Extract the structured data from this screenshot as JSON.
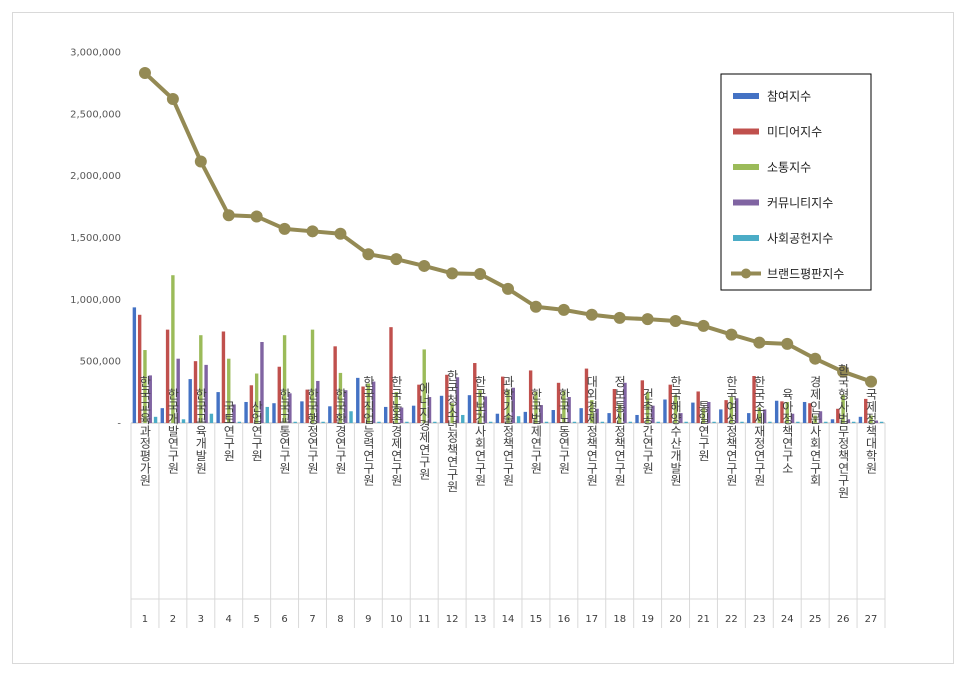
{
  "chart_data": {
    "type": "bar",
    "title": "",
    "xlabel": "",
    "ylabel": "",
    "ylim": [
      0,
      3000000
    ],
    "yticks": [
      0,
      500000,
      1000000,
      1500000,
      2000000,
      2500000,
      3000000
    ],
    "ytick_labels": [
      "-",
      "500,000",
      "1,000,000",
      "1,500,000",
      "2,000,000",
      "2,500,000",
      "3,000,000"
    ],
    "legend_position": "top-right",
    "ranks": [
      "1",
      "2",
      "3",
      "4",
      "5",
      "6",
      "7",
      "8",
      "9",
      "10",
      "11",
      "12",
      "13",
      "14",
      "15",
      "16",
      "17",
      "18",
      "19",
      "20",
      "21",
      "22",
      "23",
      "24",
      "25",
      "26",
      "27"
    ],
    "categories": [
      "한국교육과정평가원",
      "한국개발연구원",
      "한국교육개발원",
      "국토연구원",
      "산업연구원",
      "한국교통연구원",
      "한국행정연구원",
      "한국환경연구원",
      "한국직업능력연구원",
      "한국농촌경제연구원",
      "에너지경제연구원",
      "한국청소년정책연구원",
      "한국보건사회연구원",
      "과학기술정책연구원",
      "한국법제연구원",
      "한국노동연구원",
      "대외경제정책연구원",
      "정보통신정책연구원",
      "건축공간연구원",
      "한국해양수산개발원",
      "통일연구원",
      "한국여성정책연구원",
      "한국조세재정연구원",
      "육아정책연구소",
      "경제인문사회연구회",
      "한국형사법무정책연구원",
      "국제정책대학원"
    ],
    "series": [
      {
        "name": "참여지수",
        "kind": "bar",
        "color": "#4472C4",
        "values": [
          935000,
          120000,
          355000,
          250000,
          170000,
          160000,
          175000,
          135000,
          365000,
          130000,
          140000,
          220000,
          225000,
          75000,
          90000,
          105000,
          120000,
          80000,
          65000,
          190000,
          165000,
          110000,
          80000,
          180000,
          170000,
          30000,
          50000
        ]
      },
      {
        "name": "미디어지수",
        "kind": "bar",
        "color": "#C0504D",
        "values": [
          875000,
          755000,
          500000,
          740000,
          305000,
          455000,
          270000,
          620000,
          295000,
          775000,
          310000,
          390000,
          485000,
          375000,
          425000,
          325000,
          440000,
          275000,
          345000,
          310000,
          255000,
          185000,
          380000,
          175000,
          160000,
          115000,
          195000
        ]
      },
      {
        "name": "소통지수",
        "kind": "bar",
        "color": "#9BBB59",
        "values": [
          590000,
          1195000,
          710000,
          520000,
          400000,
          710000,
          755000,
          405000,
          320000,
          250000,
          595000,
          160000,
          265000,
          270000,
          255000,
          260000,
          185000,
          150000,
          250000,
          225000,
          120000,
          210000,
          125000,
          170000,
          60000,
          230000,
          60000
        ]
      },
      {
        "name": "커뮤니티지수",
        "kind": "bar",
        "color": "#8064A2",
        "values": [
          385000,
          520000,
          470000,
          150000,
          655000,
          240000,
          340000,
          265000,
          335000,
          125000,
          210000,
          370000,
          215000,
          285000,
          145000,
          210000,
          115000,
          325000,
          140000,
          80000,
          170000,
          200000,
          110000,
          75000,
          95000,
          30000,
          20000
        ]
      },
      {
        "name": "사회공헌지수",
        "kind": "bar",
        "color": "#4BACC6",
        "values": [
          50000,
          30000,
          75000,
          10000,
          130000,
          10000,
          10000,
          95000,
          10000,
          10000,
          10000,
          65000,
          10000,
          55000,
          10000,
          10000,
          10000,
          10000,
          10000,
          10000,
          10000,
          10000,
          10000,
          10000,
          10000,
          10000,
          10000
        ]
      },
      {
        "name": "브랜드평판지수",
        "kind": "line",
        "color": "#948A54",
        "values": [
          2830000,
          2620000,
          2115000,
          1680000,
          1670000,
          1570000,
          1550000,
          1530000,
          1365000,
          1325000,
          1270000,
          1210000,
          1205000,
          1085000,
          940000,
          915000,
          875000,
          850000,
          840000,
          825000,
          785000,
          715000,
          650000,
          640000,
          520000,
          415000,
          335000
        ]
      }
    ]
  }
}
